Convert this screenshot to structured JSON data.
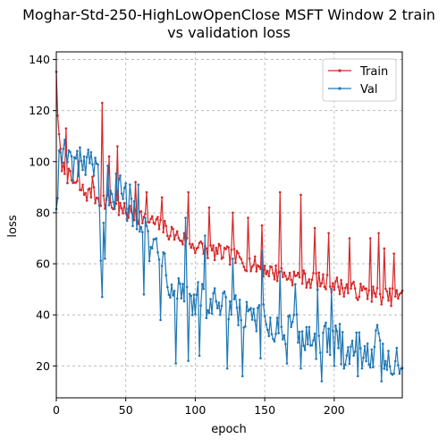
{
  "chart_data": {
    "type": "line",
    "title_line1": "Moghar-Std-250-HighLowOpenClose MSFT Window 2 train",
    "title_line2": "vs validation loss",
    "xlabel": "epoch",
    "ylabel": "loss",
    "xlim": [
      0,
      249
    ],
    "ylim": [
      7.5,
      143
    ],
    "xticks": [
      0,
      50,
      100,
      150,
      200
    ],
    "yticks": [
      20,
      40,
      60,
      80,
      100,
      120,
      140
    ],
    "grid": true,
    "legend_position": "top-right",
    "series": [
      {
        "name": "Train",
        "color": "#d62728",
        "anchors": [
          [
            0,
            137
          ],
          [
            1,
            118
          ],
          [
            3,
            102
          ],
          [
            5,
            97
          ],
          [
            10,
            93
          ],
          [
            20,
            88
          ],
          [
            30,
            86
          ],
          [
            40,
            83
          ],
          [
            50,
            80
          ],
          [
            60,
            79
          ],
          [
            70,
            76
          ],
          [
            80,
            73
          ],
          [
            90,
            70
          ],
          [
            100,
            67
          ],
          [
            110,
            65
          ],
          [
            120,
            64
          ],
          [
            130,
            62
          ],
          [
            140,
            60
          ],
          [
            150,
            58
          ],
          [
            160,
            56
          ],
          [
            170,
            55
          ],
          [
            180,
            54
          ],
          [
            190,
            53
          ],
          [
            200,
            52
          ],
          [
            210,
            50
          ],
          [
            220,
            49
          ],
          [
            230,
            48
          ],
          [
            240,
            47
          ],
          [
            249,
            47
          ]
        ],
        "spikes": [
          [
            1,
            118
          ],
          [
            7,
            113
          ],
          [
            16,
            100
          ],
          [
            26,
            94
          ],
          [
            33,
            123
          ],
          [
            38,
            102
          ],
          [
            44,
            106
          ],
          [
            57,
            92
          ],
          [
            65,
            88
          ],
          [
            76,
            86
          ],
          [
            95,
            88
          ],
          [
            110,
            82
          ],
          [
            127,
            80
          ],
          [
            138,
            78
          ],
          [
            148,
            75
          ],
          [
            161,
            88
          ],
          [
            176,
            87
          ],
          [
            186,
            74
          ],
          [
            196,
            72
          ],
          [
            211,
            70
          ],
          [
            226,
            70
          ],
          [
            236,
            66
          ],
          [
            243,
            64
          ],
          [
            232,
            72
          ]
        ]
      },
      {
        "name": "Val",
        "color": "#1f77b4",
        "anchors": [
          [
            0,
            85
          ],
          [
            2,
            100
          ],
          [
            5,
            103
          ],
          [
            10,
            99
          ],
          [
            20,
            98
          ],
          [
            30,
            94
          ],
          [
            33,
            47
          ],
          [
            35,
            92
          ],
          [
            40,
            90
          ],
          [
            50,
            85
          ],
          [
            60,
            80
          ],
          [
            65,
            77
          ],
          [
            67,
            60
          ],
          [
            72,
            72
          ],
          [
            80,
            56
          ],
          [
            90,
            50
          ],
          [
            100,
            46
          ],
          [
            110,
            44
          ],
          [
            120,
            42
          ],
          [
            130,
            40
          ],
          [
            140,
            38
          ],
          [
            150,
            36
          ],
          [
            160,
            34
          ],
          [
            170,
            33
          ],
          [
            180,
            31
          ],
          [
            190,
            30
          ],
          [
            200,
            29
          ],
          [
            210,
            28
          ],
          [
            220,
            27
          ],
          [
            230,
            26
          ],
          [
            240,
            24
          ],
          [
            249,
            22
          ]
        ],
        "spikes": [
          [
            5,
            105
          ],
          [
            20,
            102
          ],
          [
            35,
            62
          ],
          [
            45,
            93
          ],
          [
            53,
            91
          ],
          [
            59,
            91
          ],
          [
            75,
            82
          ],
          [
            93,
            78
          ],
          [
            107,
            71
          ],
          [
            127,
            62
          ],
          [
            148,
            65
          ],
          [
            161,
            57
          ],
          [
            172,
            52
          ],
          [
            188,
            50
          ],
          [
            198,
            50
          ],
          [
            217,
            41
          ],
          [
            231,
            36
          ]
        ],
        "dips": [
          [
            33,
            47
          ],
          [
            63,
            48
          ],
          [
            75,
            38
          ],
          [
            86,
            21
          ],
          [
            95,
            22
          ],
          [
            103,
            24
          ],
          [
            123,
            19
          ],
          [
            134,
            16
          ],
          [
            147,
            23
          ],
          [
            166,
            21
          ],
          [
            176,
            19
          ],
          [
            191,
            14
          ],
          [
            200,
            20
          ],
          [
            207,
            19
          ],
          [
            217,
            16
          ],
          [
            234,
            14
          ],
          [
            241,
            17
          ],
          [
            248,
            19
          ]
        ]
      }
    ]
  }
}
